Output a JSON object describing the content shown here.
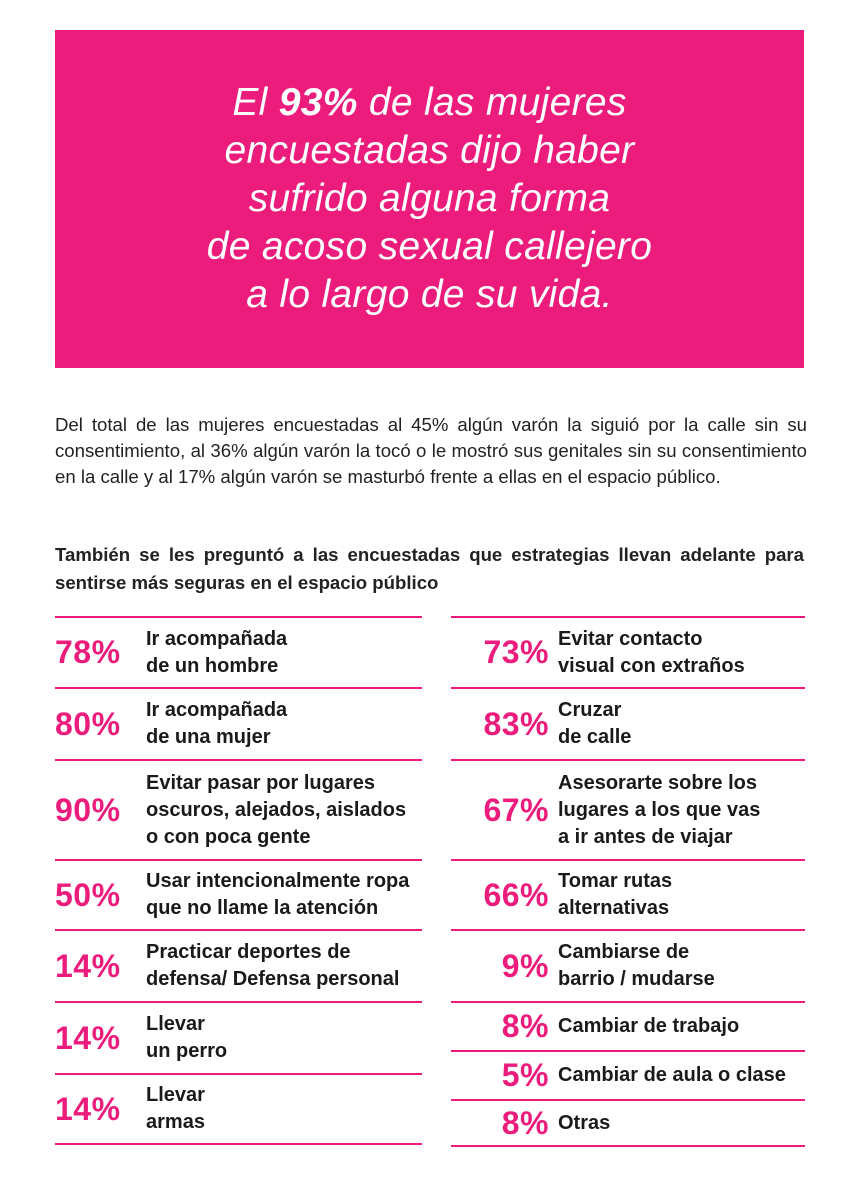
{
  "banner": {
    "text_before": "El ",
    "highlight": "93%",
    "text_after": " de las mujeres\nencuestadas dijo haber\nsufrido alguna forma\nde acoso sexual callejero\na lo largo de su vida."
  },
  "intro": "Del total de las mujeres encuestadas al 45% algún varón la siguió por la calle sin su consentimiento, al 36% algún varón la tocó o le mostró sus genitales sin su consentimiento en la calle y al 17% algún varón se masturbó frente a ellas en el espacio público.",
  "question": "También se les preguntó a las encuestadas que estrategias llevan adelante para sentirse más seguras en el espacio público",
  "left_items": [
    {
      "pct": "78%",
      "label": "Ir acompañada\nde un hombre"
    },
    {
      "pct": "80%",
      "label": "Ir acompañada\nde una mujer"
    },
    {
      "pct": "90%",
      "label": "Evitar pasar por lugares\noscuros, alejados, aislados\no con poca gente"
    },
    {
      "pct": "50%",
      "label": "Usar intencionalmente ropa\nque no llame la atención"
    },
    {
      "pct": "14%",
      "label": "Practicar deportes de\ndefensa/ Defensa personal"
    },
    {
      "pct": "14%",
      "label": "Llevar\nun perro"
    },
    {
      "pct": "14%",
      "label": "Llevar\narmas"
    }
  ],
  "right_items": [
    {
      "pct": "73%",
      "label": "Evitar contacto\nvisual con extraños"
    },
    {
      "pct": "83%",
      "label": "Cruzar\nde calle"
    },
    {
      "pct": "67%",
      "label": "Asesorarte sobre los\nlugares a los que vas\na ir antes de viajar"
    },
    {
      "pct": "66%",
      "label": "Tomar rutas\nalternativas"
    },
    {
      "pct": "9%",
      "label": "Cambiarse de\nbarrio / mudarse"
    },
    {
      "pct": "8%",
      "label": "Cambiar de trabajo"
    },
    {
      "pct": "5%",
      "label": "Cambiar de aula o clase"
    },
    {
      "pct": "8%",
      "label": "Otras"
    }
  ],
  "colors": {
    "accent": "#ec1c7d",
    "text": "#1a1a1a"
  }
}
